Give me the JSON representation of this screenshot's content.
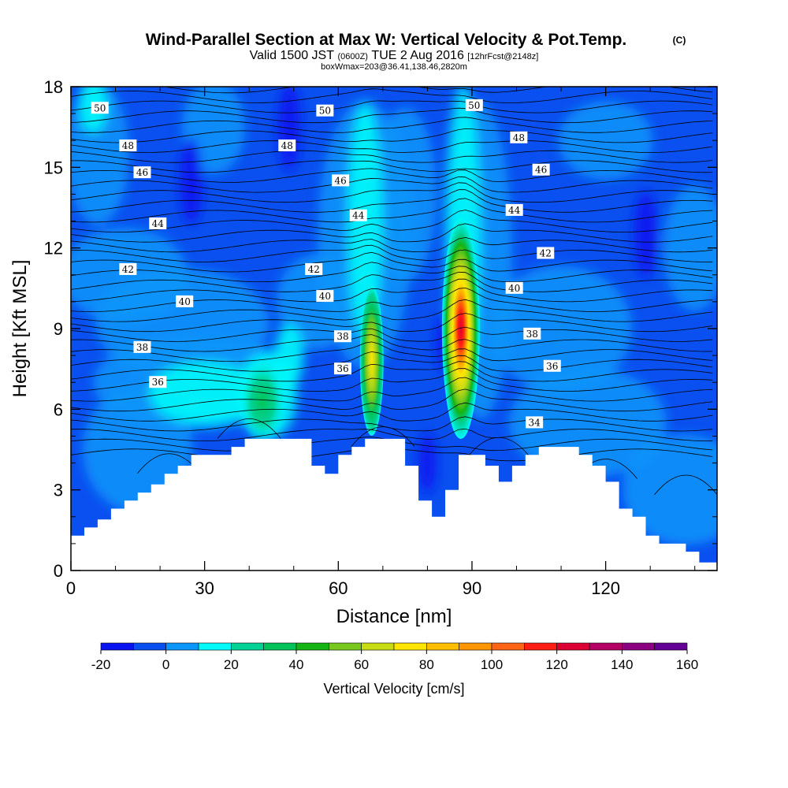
{
  "header": {
    "title_main": "Wind-Parallel Section at Max W: Vertical Velocity & Pot.Temp.",
    "title_c": "(C)",
    "valid_prefix": "Valid 1500 JST",
    "valid_utc": "(0600Z)",
    "valid_date": "TUE 2 Aug 2016",
    "valid_fcst": "[12hrFcst@2148z]",
    "box_info": "boxWmax=203@36.41,138.46,2820m"
  },
  "colors": {
    "palette": [
      "#0a14f0",
      "#0a50f0",
      "#0a96fa",
      "#00fafa",
      "#00d296",
      "#00c35a",
      "#14b414",
      "#78c81e",
      "#c8dc14",
      "#ffe600",
      "#ffbe00",
      "#ff9600",
      "#ff6414",
      "#ff1e14",
      "#dc0032",
      "#b40064",
      "#8c0082",
      "#640096"
    ],
    "terrain": "#ffffff",
    "contour": "#000000"
  },
  "chart_data": {
    "type": "heatmap",
    "xlabel": "Distance [nm]",
    "ylabel": "Height [Kft MSL]",
    "xlim": [
      0,
      145
    ],
    "ylim": [
      0,
      18
    ],
    "xticks": [
      0,
      30,
      60,
      90,
      120
    ],
    "yticks": [
      0,
      3,
      6,
      9,
      12,
      15,
      18
    ],
    "colorbar": {
      "title": "Vertical Velocity [cm/s]",
      "levels": [
        -20,
        -10,
        0,
        10,
        20,
        30,
        40,
        50,
        60,
        70,
        80,
        90,
        100,
        110,
        120,
        130,
        140,
        150,
        160
      ],
      "tick_values": [
        -20,
        0,
        20,
        40,
        60,
        80,
        100,
        120,
        140,
        160
      ],
      "tick_labels": [
        "-20",
        "0",
        "20",
        "40",
        "60",
        "80",
        "100",
        "120",
        "140",
        "160"
      ]
    },
    "terrain_profile": {
      "x": [
        0,
        3,
        6,
        9,
        12,
        15,
        18,
        21,
        24,
        27,
        30,
        33,
        36,
        39,
        42,
        45,
        48,
        51,
        54,
        57,
        60,
        63,
        66,
        69,
        72,
        75,
        78,
        81,
        84,
        87,
        90,
        93,
        96,
        99,
        102,
        105,
        108,
        111,
        114,
        117,
        120,
        123,
        126,
        129,
        132,
        135,
        138,
        141,
        145
      ],
      "height": [
        1.3,
        1.6,
        1.9,
        2.3,
        2.6,
        2.9,
        3.2,
        3.6,
        3.9,
        4.3,
        4.3,
        4.3,
        4.6,
        4.9,
        4.9,
        4.9,
        4.9,
        4.9,
        3.9,
        3.6,
        4.3,
        4.6,
        4.9,
        4.9,
        4.9,
        3.9,
        2.6,
        2.0,
        3.0,
        4.3,
        4.3,
        3.9,
        3.3,
        3.9,
        4.3,
        4.6,
        4.6,
        4.6,
        4.3,
        3.9,
        3.3,
        2.3,
        2.0,
        1.3,
        1.0,
        1.0,
        0.7,
        0.3,
        0.3
      ]
    },
    "updrafts": [
      {
        "x": 87.5,
        "y": 9.0,
        "peak_cm_s": 130
      },
      {
        "x": 67.5,
        "y": 7.8,
        "peak_cm_s": 65
      },
      {
        "x": 43.0,
        "y": 6.3,
        "peak_cm_s": 35
      }
    ],
    "downdrafts": [
      {
        "x": 27.0,
        "y": 14.5,
        "min_cm_s": -20
      },
      {
        "x": 49.0,
        "y": 16.5,
        "min_cm_s": -20
      },
      {
        "x": 129.0,
        "y": 12.5,
        "min_cm_s": -20
      },
      {
        "x": 80.0,
        "y": 4.0,
        "min_cm_s": -15
      },
      {
        "x": 84.0,
        "y": 8.5,
        "min_cm_s": -10
      }
    ],
    "theta_contours": {
      "levels": [
        34,
        36,
        38,
        40,
        42,
        44,
        46,
        48,
        50
      ],
      "labels": [
        {
          "text": "50",
          "x": 6.5,
          "y": 17.2
        },
        {
          "text": "48",
          "x": 12.8,
          "y": 15.8
        },
        {
          "text": "46",
          "x": 16.0,
          "y": 14.8
        },
        {
          "text": "44",
          "x": 19.5,
          "y": 12.9
        },
        {
          "text": "42",
          "x": 12.8,
          "y": 11.2
        },
        {
          "text": "40",
          "x": 25.5,
          "y": 10.0
        },
        {
          "text": "38",
          "x": 16.0,
          "y": 8.3
        },
        {
          "text": "36",
          "x": 19.5,
          "y": 7.0
        },
        {
          "text": "50",
          "x": 57.0,
          "y": 17.1
        },
        {
          "text": "48",
          "x": 48.5,
          "y": 15.8
        },
        {
          "text": "46",
          "x": 60.5,
          "y": 14.5
        },
        {
          "text": "44",
          "x": 64.5,
          "y": 13.2
        },
        {
          "text": "42",
          "x": 54.5,
          "y": 11.2
        },
        {
          "text": "40",
          "x": 57.0,
          "y": 10.2
        },
        {
          "text": "38",
          "x": 61.0,
          "y": 8.7
        },
        {
          "text": "36",
          "x": 61.0,
          "y": 7.5
        },
        {
          "text": "50",
          "x": 90.5,
          "y": 17.3
        },
        {
          "text": "48",
          "x": 100.5,
          "y": 16.1
        },
        {
          "text": "46",
          "x": 105.5,
          "y": 14.9
        },
        {
          "text": "44",
          "x": 99.5,
          "y": 13.4
        },
        {
          "text": "42",
          "x": 106.5,
          "y": 11.8
        },
        {
          "text": "40",
          "x": 99.5,
          "y": 10.5
        },
        {
          "text": "38",
          "x": 103.5,
          "y": 8.8
        },
        {
          "text": "36",
          "x": 108.0,
          "y": 7.6
        },
        {
          "text": "34",
          "x": 104.0,
          "y": 5.5
        }
      ]
    }
  }
}
